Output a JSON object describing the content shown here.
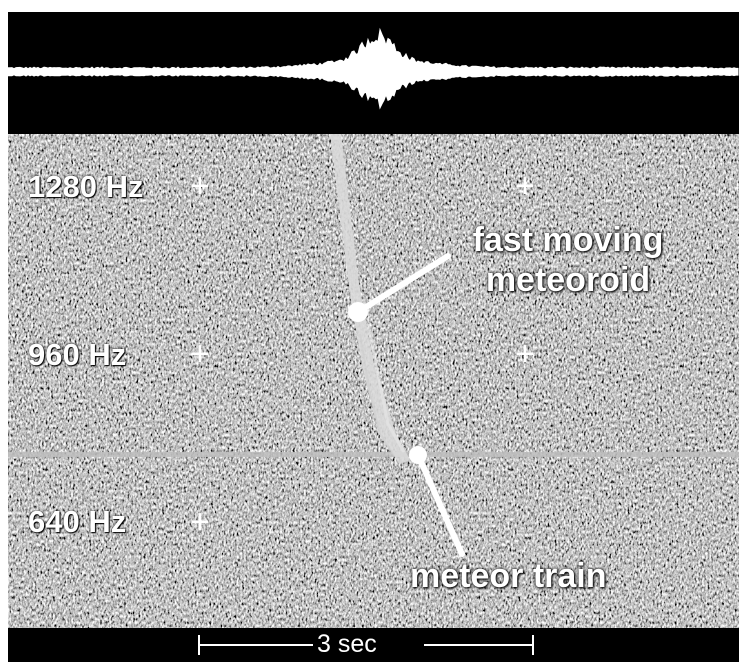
{
  "spectrogram": {
    "frequency_labels": [
      "1280 Hz",
      "960 Hz",
      "640 Hz"
    ]
  },
  "annotations": {
    "meteoroid": [
      "fast moving",
      "meteoroid"
    ],
    "train": "meteor train"
  },
  "time_scale": {
    "label": "3 sec"
  },
  "colors": {
    "background": "#000000",
    "signal": "#ffffff",
    "noise_mid": "#6e6e6e"
  }
}
